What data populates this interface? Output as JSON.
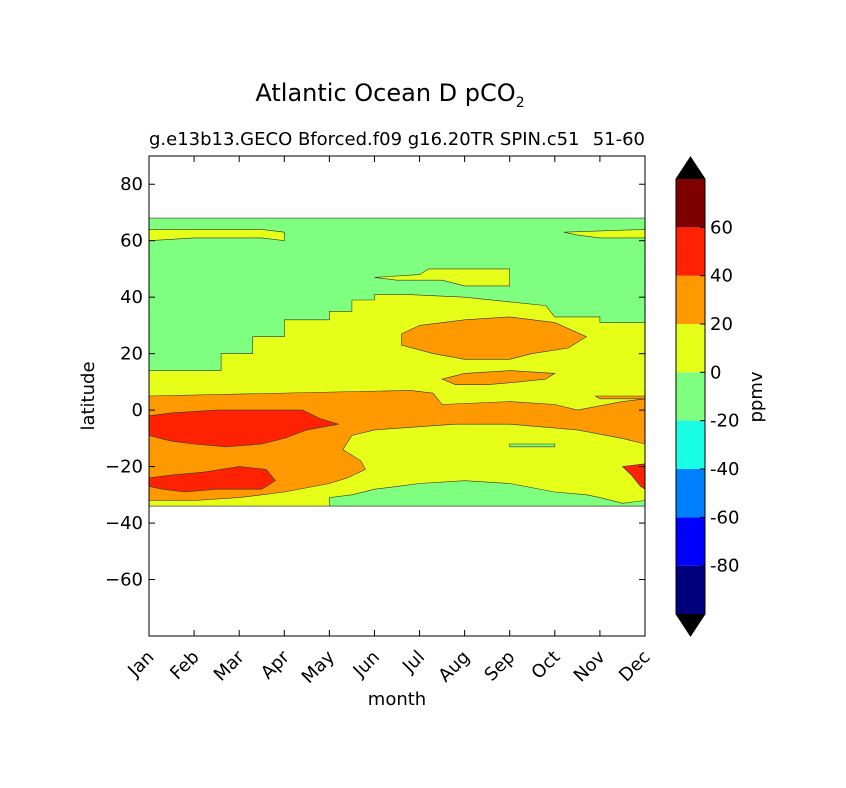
{
  "chart_data": {
    "type": "heatmap",
    "title_main": "Atlantic Ocean D pCO",
    "title_subscript": "2",
    "subtitle_left": "g.e13b13.GECO Bforced.f09 g16.20TR SPIN.c51",
    "subtitle_right": "51-60",
    "xlabel": "month",
    "ylabel": "latitude",
    "x_categories": [
      "Jan",
      "Feb",
      "Mar",
      "Apr",
      "May",
      "Jun",
      "Jul",
      "Aug",
      "Sep",
      "Oct",
      "Nov",
      "Dec"
    ],
    "ylim": [
      -80,
      90
    ],
    "y_ticks": [
      80,
      60,
      40,
      20,
      0,
      -20,
      -40,
      -60
    ],
    "y_tick_labels": [
      "80",
      "60",
      "40",
      "20",
      "0",
      "−20",
      "−40",
      "−60"
    ],
    "data_lat_range": [
      -34,
      68
    ],
    "colorbar": {
      "label": "ppmv",
      "levels": [
        -100,
        -80,
        -60,
        -40,
        -20,
        0,
        20,
        40,
        60,
        80
      ],
      "tick_values": [
        60,
        40,
        20,
        0,
        -20,
        -40,
        -60,
        -80
      ],
      "tick_labels": [
        "60",
        "40",
        "20",
        "0",
        "-20",
        "-40",
        "-60",
        "-80"
      ],
      "colors": [
        "#00007f",
        "#0000ff",
        "#007fff",
        "#19ffe5",
        "#7fff7f",
        "#e5ff19",
        "#ff9900",
        "#ff2200",
        "#7f0000"
      ],
      "extend_color": "#000000",
      "extend": "both"
    },
    "regions": [
      {
        "level": "0 to 20",
        "color": "#e5ff19",
        "description": "Subtropical band 15N to 34S, NH winter band near 60N, Jul-Sep around 48N"
      },
      {
        "level": "-20 to 0",
        "color": "#7fff7f",
        "description": "Subpolar and mid-latitude North Atlantic, Aug-Dec near 32S"
      },
      {
        "level": "20 to 40",
        "color": "#ff9900",
        "description": "Equatorial band, summer patch 20-30N Jul-Oct"
      },
      {
        "level": "40 to 60",
        "color": "#ff2200",
        "description": "Jan-May equatorial and Jan-Apr 25S"
      }
    ]
  }
}
